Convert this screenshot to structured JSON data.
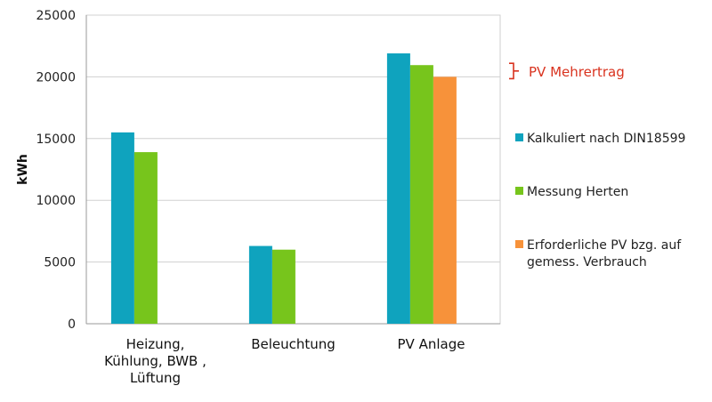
{
  "chart_data": {
    "type": "bar",
    "categories": [
      [
        "Heizung,",
        "Kühlung, BWB ,",
        "Lüftung"
      ],
      [
        "Beleuchtung"
      ],
      [
        "PV Anlage"
      ]
    ],
    "series": [
      {
        "name": "Kalkuliert nach DIN18599",
        "color": "#0fa3be",
        "values": [
          15500,
          6300,
          21900
        ]
      },
      {
        "name": "Messung Herten",
        "color": "#77c51c",
        "values": [
          13900,
          6000,
          20950
        ]
      },
      {
        "name": [
          "Erforderliche PV bzg. auf",
          "gemess.  Verbrauch"
        ],
        "color": "#f7923a",
        "values": [
          null,
          null,
          20000
        ]
      }
    ],
    "ylabel": "kWh",
    "ylim": [
      0,
      25000
    ],
    "yticks": [
      0,
      5000,
      10000,
      15000,
      20000,
      25000
    ],
    "grid": true,
    "legend_position": "right",
    "annotation": {
      "text": "PV Mehrertrag",
      "color": "#d9331f",
      "range": [
        20000,
        20950
      ]
    }
  }
}
